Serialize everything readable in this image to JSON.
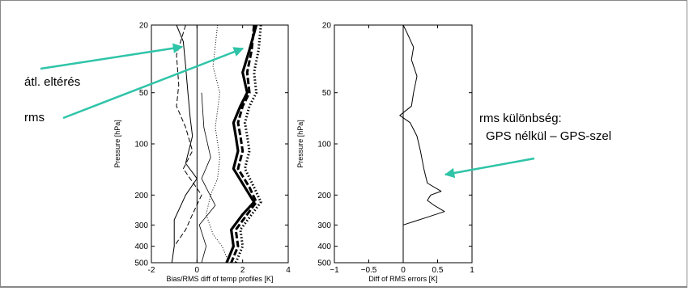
{
  "annotations": {
    "bias": "átl. eltérés",
    "rms": "rms",
    "rms_diff_line1": "rms különbség:",
    "rms_diff_line2": "GPS nélkül – GPS-szel"
  },
  "colors": {
    "arrow": "#2fc4a8",
    "frame": "#888888"
  },
  "chart_data": [
    {
      "type": "line",
      "title": "",
      "xlabel": "Bias/RMS diff of temp profiles [K]",
      "ylabel": "Pressure [hPa]",
      "xlim": [
        -2,
        4
      ],
      "ylim": [
        500,
        20
      ],
      "yscale": "log",
      "xticks": [
        -2,
        0,
        2,
        4
      ],
      "yticks": [
        20,
        50,
        100,
        200,
        300,
        400,
        500
      ],
      "vline_at": 0,
      "series": [
        {
          "style": "thin-solid",
          "points": [
            [
              -0.9,
              20
            ],
            [
              -0.6,
              25
            ],
            [
              -0.5,
              35
            ],
            [
              -0.4,
              50
            ],
            [
              -0.3,
              70
            ],
            [
              -0.2,
              90
            ],
            [
              -0.5,
              130
            ],
            [
              0.0,
              160
            ],
            [
              -0.5,
              200
            ],
            [
              -1.0,
              280
            ],
            [
              -1.0,
              400
            ],
            [
              -1.1,
              500
            ]
          ]
        },
        {
          "style": "thin-dashed",
          "points": [
            [
              -0.5,
              20
            ],
            [
              -0.9,
              30
            ],
            [
              -0.8,
              45
            ],
            [
              -0.9,
              60
            ],
            [
              -0.5,
              80
            ],
            [
              -0.2,
              110
            ],
            [
              -0.6,
              140
            ],
            [
              0.2,
              200
            ],
            [
              -0.2,
              260
            ],
            [
              -0.5,
              320
            ],
            [
              -1.0,
              400
            ]
          ]
        },
        {
          "style": "thin-dotted",
          "points": [
            [
              0.9,
              20
            ],
            [
              0.7,
              35
            ],
            [
              1.0,
              50
            ],
            [
              0.8,
              80
            ],
            [
              1.0,
              120
            ],
            [
              0.9,
              160
            ],
            [
              0.6,
              200
            ],
            [
              0.4,
              260
            ],
            [
              0.7,
              340
            ],
            [
              1.1,
              400
            ],
            [
              1.4,
              500
            ]
          ]
        },
        {
          "style": "thin-solid-2",
          "points": [
            [
              0.2,
              50
            ],
            [
              0.3,
              80
            ],
            [
              0.6,
              120
            ],
            [
              0.2,
              160
            ],
            [
              0.8,
              230
            ],
            [
              0.1,
              300
            ],
            [
              0.4,
              400
            ],
            [
              0.2,
              500
            ]
          ]
        },
        {
          "style": "thick-solid",
          "points": [
            [
              2.6,
              20
            ],
            [
              2.3,
              28
            ],
            [
              2.0,
              38
            ],
            [
              2.2,
              50
            ],
            [
              1.9,
              60
            ],
            [
              1.6,
              75
            ],
            [
              1.7,
              90
            ],
            [
              1.8,
              110
            ],
            [
              1.6,
              140
            ],
            [
              2.1,
              180
            ],
            [
              2.5,
              220
            ],
            [
              2.0,
              260
            ],
            [
              1.5,
              320
            ],
            [
              1.6,
              400
            ],
            [
              1.3,
              500
            ]
          ]
        },
        {
          "style": "thick-dashed",
          "points": [
            [
              2.5,
              20
            ],
            [
              2.4,
              28
            ],
            [
              2.2,
              38
            ],
            [
              2.3,
              50
            ],
            [
              2.0,
              60
            ],
            [
              1.8,
              75
            ],
            [
              1.9,
              90
            ],
            [
              2.0,
              110
            ],
            [
              1.8,
              140
            ],
            [
              2.3,
              180
            ],
            [
              2.6,
              220
            ],
            [
              2.2,
              260
            ],
            [
              1.7,
              320
            ],
            [
              1.8,
              400
            ],
            [
              1.5,
              500
            ]
          ]
        },
        {
          "style": "thick-dotted",
          "points": [
            [
              2.8,
              20
            ],
            [
              2.7,
              28
            ],
            [
              2.5,
              38
            ],
            [
              2.6,
              50
            ],
            [
              2.3,
              60
            ],
            [
              2.1,
              75
            ],
            [
              2.2,
              90
            ],
            [
              2.3,
              110
            ],
            [
              2.1,
              140
            ],
            [
              2.5,
              180
            ],
            [
              2.8,
              220
            ],
            [
              2.4,
              260
            ],
            [
              1.9,
              320
            ],
            [
              2.0,
              400
            ],
            [
              1.7,
              500
            ]
          ]
        }
      ]
    },
    {
      "type": "line",
      "title": "",
      "xlabel": "Diff of RMS errors [K]",
      "ylabel": "Pressure [hPa]",
      "xlim": [
        -1,
        1
      ],
      "ylim": [
        500,
        20
      ],
      "yscale": "log",
      "xticks": [
        -1,
        -0.5,
        0,
        0.5,
        1
      ],
      "xtick_labels": [
        "−1",
        "−0.5",
        "0",
        "0.5",
        "1"
      ],
      "yticks": [
        20,
        50,
        100,
        200,
        300,
        400,
        500
      ],
      "vline_at": 0,
      "series": [
        {
          "style": "thin-solid",
          "points": [
            [
              0.0,
              20
            ],
            [
              0.05,
              22
            ],
            [
              0.15,
              27
            ],
            [
              0.12,
              32
            ],
            [
              0.2,
              40
            ],
            [
              0.15,
              50
            ],
            [
              0.12,
              60
            ],
            [
              -0.05,
              68
            ],
            [
              0.1,
              75
            ],
            [
              0.2,
              90
            ],
            [
              0.25,
              110
            ],
            [
              0.3,
              140
            ],
            [
              0.35,
              170
            ],
            [
              0.55,
              190
            ],
            [
              0.4,
              200
            ],
            [
              0.35,
              215
            ],
            [
              0.45,
              230
            ],
            [
              0.6,
              250
            ],
            [
              0.35,
              270
            ],
            [
              0.0,
              300
            ]
          ]
        }
      ]
    }
  ]
}
